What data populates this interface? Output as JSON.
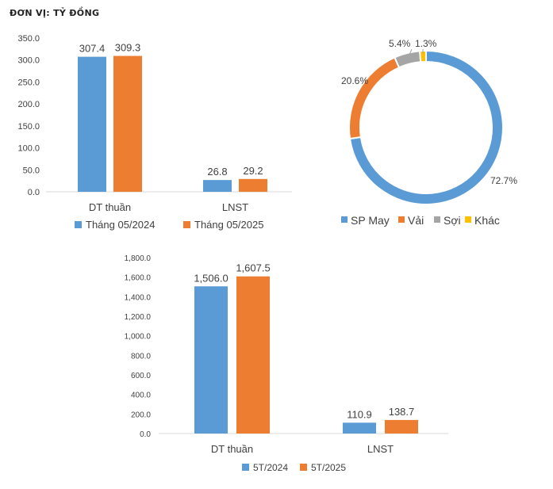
{
  "unit_label": "ĐƠN VỊ: TỶ ĐỒNG",
  "colors": {
    "blue": "#5B9BD5",
    "orange": "#ED7D31",
    "gray": "#A5A5A5",
    "yellow": "#FFC000",
    "axis": "#D9D9D9",
    "text": "#404040"
  },
  "chart_data": [
    {
      "type": "bar",
      "categories": [
        "DT thuần",
        "LNST"
      ],
      "series": [
        {
          "name": "Tháng 05/2024",
          "values": [
            307.4,
            26.8
          ],
          "labels": [
            "307.4",
            "26.8"
          ]
        },
        {
          "name": "Tháng 05/2025",
          "values": [
            309.3,
            29.2
          ],
          "labels": [
            "309.3",
            "29.2"
          ]
        }
      ],
      "ylim": [
        0,
        350
      ],
      "yticks": [
        "0.0",
        "50.0",
        "100.0",
        "150.0",
        "200.0",
        "250.0",
        "300.0",
        "350.0"
      ],
      "legend": "bottom",
      "grid": false
    },
    {
      "type": "pie",
      "donut": true,
      "slices": [
        {
          "name": "SP May",
          "value": 72.7,
          "label": "72.7%"
        },
        {
          "name": "Vải",
          "value": 20.6,
          "label": "20.6%"
        },
        {
          "name": "Sợi",
          "value": 5.4,
          "label": "5.4%"
        },
        {
          "name": "Khác",
          "value": 1.3,
          "label": "1.3%"
        }
      ],
      "legend": "bottom"
    },
    {
      "type": "bar",
      "categories": [
        "DT thuần",
        "LNST"
      ],
      "series": [
        {
          "name": "5T/2024",
          "values": [
            1506.0,
            110.9
          ],
          "labels": [
            "1,506.0",
            "110.9"
          ]
        },
        {
          "name": "5T/2025",
          "values": [
            1607.5,
            138.7
          ],
          "labels": [
            "1,607.5",
            "138.7"
          ]
        }
      ],
      "ylim": [
        0,
        1800
      ],
      "yticks": [
        "0.0",
        "200.0",
        "400.0",
        "600.0",
        "800.0",
        "1,000.0",
        "1,200.0",
        "1,400.0",
        "1,600.0",
        "1,800.0"
      ],
      "legend": "bottom",
      "grid": false
    }
  ]
}
